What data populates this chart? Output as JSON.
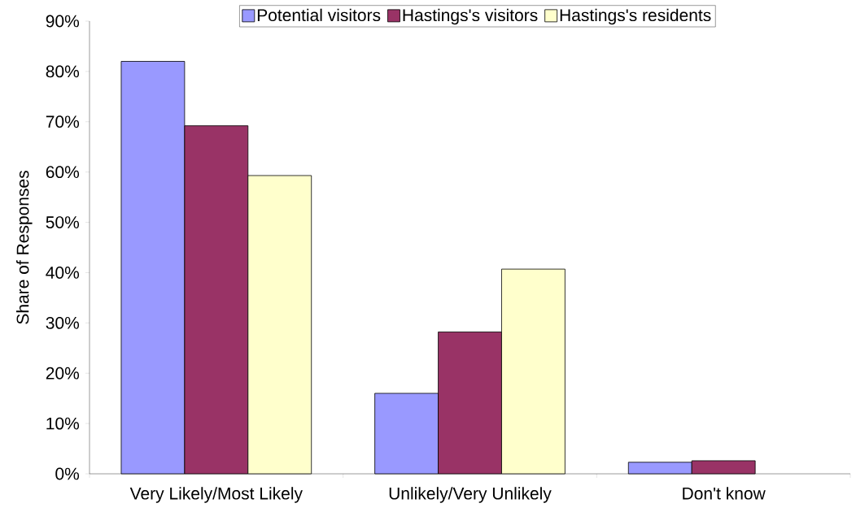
{
  "chart_data": {
    "type": "bar",
    "ylabel": "Share of Responses",
    "categories": [
      "Very Likely/Most Likely",
      "Unlikely/Very Unlikely",
      "Don't know"
    ],
    "series": [
      {
        "name": "Potential visitors",
        "color": "#9999ff",
        "values": [
          82,
          16,
          2.3
        ]
      },
      {
        "name": "Hastings's visitors",
        "color": "#993366",
        "values": [
          69.2,
          28.2,
          2.6
        ]
      },
      {
        "name": "Hastings's residents",
        "color": "#ffffcc",
        "values": [
          59.3,
          40.7,
          null
        ]
      }
    ],
    "ylim": [
      0,
      90
    ],
    "yticks": [
      {
        "value": 0,
        "label": "0%"
      },
      {
        "value": 10,
        "label": "10%"
      },
      {
        "value": 20,
        "label": "20%"
      },
      {
        "value": 30,
        "label": "30%"
      },
      {
        "value": 40,
        "label": "40%"
      },
      {
        "value": 50,
        "label": "50%"
      },
      {
        "value": 60,
        "label": "60%"
      },
      {
        "value": 70,
        "label": "70%"
      },
      {
        "value": 80,
        "label": "80%"
      },
      {
        "value": 90,
        "label": "90%"
      }
    ],
    "grid": false,
    "legend": "top"
  }
}
